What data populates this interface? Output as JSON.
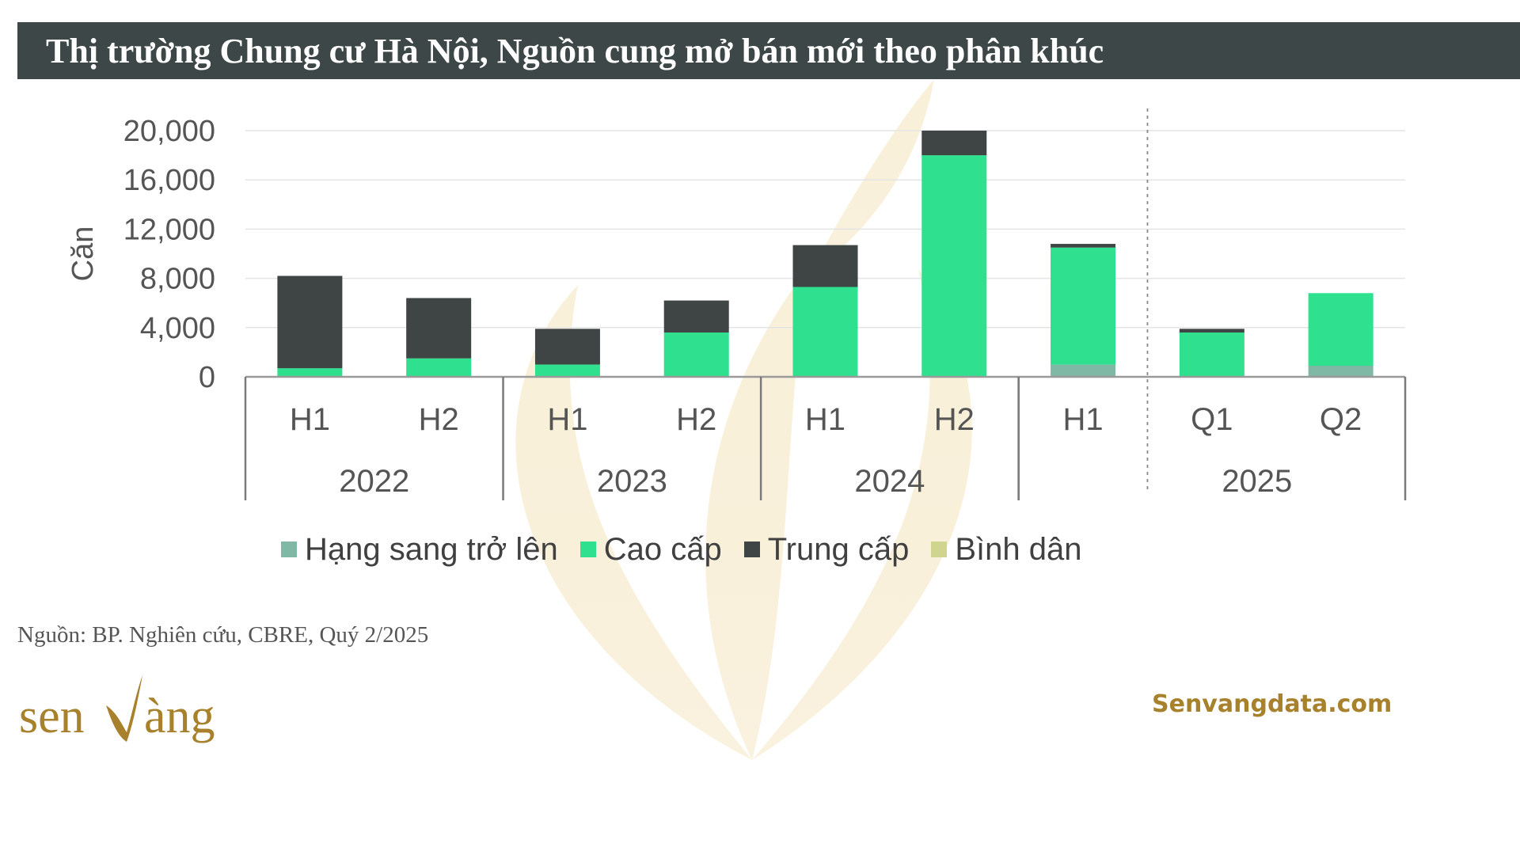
{
  "header": {
    "title": "Thị trường Chung cư Hà Nội, Nguồn cung mở bán mới theo phân khúc"
  },
  "chart_data": {
    "type": "bar",
    "stacked": true,
    "title": "Thị trường Chung cư Hà Nội, Nguồn cung mở bán mới theo phân khúc",
    "ylabel": "Căn",
    "ylim": [
      0,
      20000
    ],
    "yticks": [
      0,
      4000,
      8000,
      12000,
      16000,
      20000
    ],
    "ytick_labels": [
      "0",
      "4,000",
      "8,000",
      "12,000",
      "16,000",
      "20,000"
    ],
    "grid": true,
    "categories": [
      "H1",
      "H2",
      "H1",
      "H2",
      "H1",
      "H2",
      "H1",
      "Q1",
      "Q2"
    ],
    "category_groups": [
      {
        "label": "2022",
        "count": 2
      },
      {
        "label": "2023",
        "count": 2
      },
      {
        "label": "2024",
        "count": 2
      },
      {
        "label": "2025",
        "count": 3
      }
    ],
    "series": [
      {
        "name": "Hạng sang trở lên",
        "color": "#7fb8a4",
        "values": [
          0,
          0,
          0,
          0,
          0,
          0,
          1000,
          0,
          900
        ]
      },
      {
        "name": "Cao cấp",
        "color": "#2fe08e",
        "values": [
          700,
          1500,
          1000,
          3600,
          7300,
          18000,
          9500,
          3600,
          5900
        ]
      },
      {
        "name": "Trung cấp",
        "color": "#3f4545",
        "values": [
          7500,
          4900,
          2900,
          2600,
          3400,
          2000,
          300,
          300,
          0
        ]
      },
      {
        "name": "Bình dân",
        "color": "#cfd58f",
        "values": [
          0,
          0,
          0,
          0,
          0,
          0,
          0,
          0,
          0
        ]
      }
    ],
    "legend_position": "bottom"
  },
  "footer": {
    "source": "Nguồn: BP. Nghiên cứu, CBRE, Quý 2/2025",
    "brand_name": "senvàng",
    "website": "Senvangdata.com"
  },
  "colors": {
    "title_bar": "#3d4747",
    "brand_gold": "#a7812c"
  }
}
